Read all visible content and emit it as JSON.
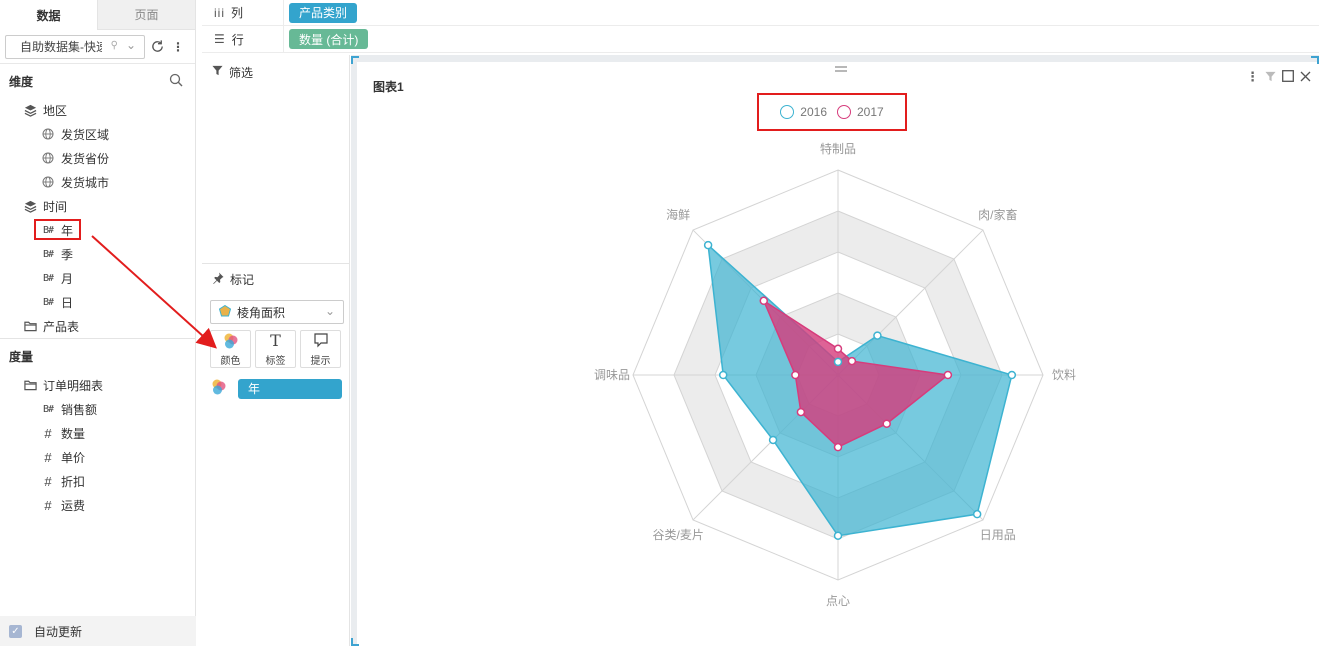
{
  "left_panel": {
    "tabs": [
      "数据",
      "页面"
    ],
    "dataset": {
      "value": "自助数据集-快速"
    },
    "dimension_header": "维度",
    "dimensions": [
      {
        "label": "地区",
        "level": 1,
        "icon": "layers-icon"
      },
      {
        "label": "发货区域",
        "level": 2,
        "icon": "globe-icon"
      },
      {
        "label": "发货省份",
        "level": 2,
        "icon": "globe-icon"
      },
      {
        "label": "发货城市",
        "level": 2,
        "icon": "globe-icon"
      },
      {
        "label": "时间",
        "level": 1,
        "icon": "layers-icon"
      },
      {
        "label": "年",
        "level": 2,
        "icon": "date-hash-icon",
        "highlighted": true
      },
      {
        "label": "季",
        "level": 2,
        "icon": "date-hash-icon"
      },
      {
        "label": "月",
        "level": 2,
        "icon": "date-hash-icon"
      },
      {
        "label": "日",
        "level": 2,
        "icon": "date-hash-icon"
      },
      {
        "label": "产品表",
        "level": 1,
        "icon": "folder-icon"
      }
    ],
    "measure_header": "度量",
    "measures": [
      {
        "label": "订单明细表",
        "level": 1,
        "icon": "folder-icon"
      },
      {
        "label": "销售额",
        "level": 2,
        "icon": "date-hash-icon"
      },
      {
        "label": "数量",
        "level": 2,
        "icon": "hash-icon"
      },
      {
        "label": "单价",
        "level": 2,
        "icon": "hash-icon"
      },
      {
        "label": "折扣",
        "level": 2,
        "icon": "hash-icon"
      },
      {
        "label": "运费",
        "level": 2,
        "icon": "hash-icon"
      }
    ],
    "auto_update": "自动更新"
  },
  "shelves": {
    "columns": {
      "label": "列",
      "pill": "产品类别"
    },
    "rows": {
      "label": "行",
      "pill": "数量 (合计)"
    }
  },
  "middle_panel": {
    "filter": "筛选",
    "mark": "标记",
    "mark_type": "棱角面积",
    "mark_buttons": [
      {
        "label": "颜色",
        "icon": "color-circles-icon"
      },
      {
        "label": "标签",
        "icon": "text-T-icon"
      },
      {
        "label": "提示",
        "icon": "speech-bubble-icon"
      }
    ],
    "color_field": "年"
  },
  "chart": {
    "title": "图表1",
    "colors": {
      "s2016": "#3db3d1",
      "s2017": "#d63c7c"
    }
  },
  "chart_data": {
    "type": "radar",
    "categories": [
      "特制品",
      "肉/家畜",
      "饮料",
      "日用品",
      "点心",
      "谷类/麦片",
      "调味品",
      "海鲜"
    ],
    "series": [
      {
        "name": "2016",
        "values": [
          80,
          340,
          1060,
          1200,
          980,
          560,
          700,
          1120
        ]
      },
      {
        "name": "2017",
        "values": [
          160,
          120,
          670,
          420,
          440,
          320,
          260,
          640
        ]
      }
    ],
    "rmax": 1250,
    "rings": 5,
    "legend": "top-center"
  }
}
